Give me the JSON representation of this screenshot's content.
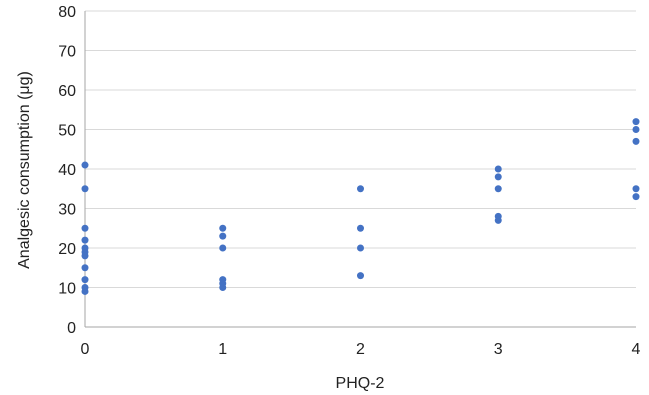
{
  "colors": {
    "point": "#4472C4",
    "grid": "#D9D9D9",
    "axis": "#A6A6A6",
    "text": "#222222",
    "background": "#FFFFFF"
  },
  "chart_data": {
    "type": "scatter",
    "title": "",
    "xlabel": "PHQ-2",
    "ylabel": "Analgesic consumption (μg)",
    "xlim": [
      0,
      4
    ],
    "ylim": [
      0,
      80
    ],
    "x_ticks": [
      0,
      1,
      2,
      3,
      4
    ],
    "y_ticks": [
      0,
      10,
      20,
      30,
      40,
      50,
      60,
      70,
      80
    ],
    "grid": true,
    "legend": "none",
    "series": [
      {
        "points": [
          {
            "x": 0,
            "y": 41
          },
          {
            "x": 0,
            "y": 35
          },
          {
            "x": 0,
            "y": 25
          },
          {
            "x": 0,
            "y": 22
          },
          {
            "x": 0,
            "y": 20
          },
          {
            "x": 0,
            "y": 19
          },
          {
            "x": 0,
            "y": 18
          },
          {
            "x": 0,
            "y": 15
          },
          {
            "x": 0,
            "y": 12
          },
          {
            "x": 0,
            "y": 10
          },
          {
            "x": 0,
            "y": 9
          },
          {
            "x": 1,
            "y": 25
          },
          {
            "x": 1,
            "y": 23
          },
          {
            "x": 1,
            "y": 20
          },
          {
            "x": 1,
            "y": 12
          },
          {
            "x": 1,
            "y": 11
          },
          {
            "x": 1,
            "y": 10
          },
          {
            "x": 2,
            "y": 35
          },
          {
            "x": 2,
            "y": 25
          },
          {
            "x": 2,
            "y": 20
          },
          {
            "x": 2,
            "y": 13
          },
          {
            "x": 3,
            "y": 40
          },
          {
            "x": 3,
            "y": 38
          },
          {
            "x": 3,
            "y": 35
          },
          {
            "x": 3,
            "y": 28
          },
          {
            "x": 3,
            "y": 27
          },
          {
            "x": 4,
            "y": 52
          },
          {
            "x": 4,
            "y": 50
          },
          {
            "x": 4,
            "y": 47
          },
          {
            "x": 4,
            "y": 35
          },
          {
            "x": 4,
            "y": 33
          }
        ]
      }
    ]
  }
}
